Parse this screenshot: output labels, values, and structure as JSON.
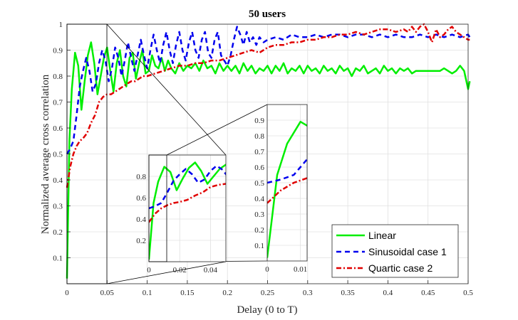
{
  "chart_data": {
    "type": "line",
    "title": "50 users",
    "xlabel": "Delay (0 to T)",
    "ylabel": "Normalized average cross correlation",
    "xlim": [
      0,
      0.5
    ],
    "ylim": [
      0,
      1
    ],
    "xticks": [
      "0",
      "0.05",
      "0.1",
      "0.15",
      "0.2",
      "0.25",
      "0.3",
      "0.35",
      "0.4",
      "0.45",
      "0.5"
    ],
    "yticks": [
      "0.1",
      "0.2",
      "0.3",
      "0.4",
      "0.5",
      "0.6",
      "0.7",
      "0.8",
      "0.9",
      "1"
    ],
    "grid": true,
    "legend_position": "bottom-right",
    "series": [
      {
        "name": "Linear",
        "color": "#00ee00",
        "style": "solid",
        "x": [
          0,
          0.003,
          0.006,
          0.01,
          0.014,
          0.018,
          0.022,
          0.026,
          0.03,
          0.034,
          0.038,
          0.042,
          0.046,
          0.05,
          0.054,
          0.058,
          0.062,
          0.066,
          0.07,
          0.074,
          0.078,
          0.082,
          0.086,
          0.09,
          0.094,
          0.098,
          0.102,
          0.106,
          0.11,
          0.114,
          0.118,
          0.122,
          0.126,
          0.13,
          0.135,
          0.14,
          0.145,
          0.15,
          0.155,
          0.16,
          0.165,
          0.17,
          0.175,
          0.18,
          0.185,
          0.19,
          0.195,
          0.2,
          0.205,
          0.21,
          0.215,
          0.22,
          0.225,
          0.23,
          0.235,
          0.24,
          0.245,
          0.25,
          0.255,
          0.26,
          0.265,
          0.27,
          0.275,
          0.28,
          0.285,
          0.29,
          0.295,
          0.3,
          0.305,
          0.31,
          0.315,
          0.32,
          0.325,
          0.33,
          0.335,
          0.34,
          0.345,
          0.35,
          0.355,
          0.36,
          0.365,
          0.37,
          0.375,
          0.38,
          0.385,
          0.39,
          0.395,
          0.4,
          0.405,
          0.41,
          0.415,
          0.42,
          0.425,
          0.43,
          0.435,
          0.44,
          0.445,
          0.45,
          0.455,
          0.46,
          0.465,
          0.47,
          0.475,
          0.48,
          0.485,
          0.49,
          0.495,
          0.5,
          0.502
        ],
        "values": [
          0.02,
          0.55,
          0.75,
          0.89,
          0.84,
          0.67,
          0.78,
          0.88,
          0.93,
          0.85,
          0.73,
          0.8,
          0.87,
          0.91,
          0.82,
          0.74,
          0.85,
          0.9,
          0.8,
          0.76,
          0.87,
          0.89,
          0.79,
          0.85,
          0.9,
          0.81,
          0.82,
          0.88,
          0.84,
          0.83,
          0.87,
          0.82,
          0.86,
          0.83,
          0.81,
          0.85,
          0.82,
          0.84,
          0.83,
          0.85,
          0.82,
          0.86,
          0.83,
          0.84,
          0.81,
          0.85,
          0.82,
          0.84,
          0.82,
          0.84,
          0.81,
          0.85,
          0.82,
          0.84,
          0.81,
          0.83,
          0.82,
          0.84,
          0.81,
          0.84,
          0.82,
          0.85,
          0.81,
          0.83,
          0.82,
          0.84,
          0.81,
          0.84,
          0.82,
          0.83,
          0.81,
          0.84,
          0.82,
          0.83,
          0.81,
          0.84,
          0.82,
          0.83,
          0.8,
          0.83,
          0.82,
          0.84,
          0.81,
          0.82,
          0.83,
          0.81,
          0.84,
          0.82,
          0.83,
          0.81,
          0.83,
          0.82,
          0.83,
          0.81,
          0.82,
          0.82,
          0.82,
          0.82,
          0.82,
          0.82,
          0.82,
          0.83,
          0.82,
          0.81,
          0.82,
          0.84,
          0.82,
          0.75,
          0.78
        ]
      },
      {
        "name": "Sinusoidal case 1",
        "color": "#0000ee",
        "style": "dashed",
        "x": [
          0,
          0.004,
          0.008,
          0.012,
          0.016,
          0.02,
          0.024,
          0.028,
          0.032,
          0.036,
          0.04,
          0.044,
          0.048,
          0.052,
          0.056,
          0.06,
          0.064,
          0.068,
          0.072,
          0.076,
          0.08,
          0.084,
          0.088,
          0.092,
          0.096,
          0.1,
          0.104,
          0.108,
          0.112,
          0.116,
          0.12,
          0.124,
          0.128,
          0.132,
          0.136,
          0.14,
          0.144,
          0.148,
          0.152,
          0.156,
          0.16,
          0.164,
          0.168,
          0.172,
          0.176,
          0.18,
          0.184,
          0.188,
          0.192,
          0.196,
          0.2,
          0.204,
          0.208,
          0.212,
          0.216,
          0.22,
          0.224,
          0.228,
          0.232,
          0.236,
          0.24,
          0.245,
          0.25,
          0.26,
          0.27,
          0.28,
          0.29,
          0.3,
          0.31,
          0.32,
          0.33,
          0.34,
          0.35,
          0.36,
          0.37,
          0.38,
          0.39,
          0.4,
          0.41,
          0.42,
          0.43,
          0.44,
          0.45,
          0.46,
          0.47,
          0.48,
          0.49,
          0.5,
          0.502
        ],
        "values": [
          0.5,
          0.52,
          0.55,
          0.65,
          0.76,
          0.82,
          0.87,
          0.82,
          0.74,
          0.77,
          0.85,
          0.9,
          0.86,
          0.78,
          0.83,
          0.91,
          0.87,
          0.8,
          0.86,
          0.93,
          0.87,
          0.82,
          0.88,
          0.94,
          0.88,
          0.83,
          0.9,
          0.96,
          0.9,
          0.85,
          0.92,
          0.97,
          0.9,
          0.85,
          0.92,
          0.97,
          0.9,
          0.86,
          0.93,
          0.97,
          0.9,
          0.87,
          0.94,
          0.97,
          0.89,
          0.87,
          0.94,
          0.97,
          0.88,
          0.86,
          0.84,
          0.88,
          0.94,
          0.99,
          0.96,
          0.92,
          0.97,
          0.93,
          0.95,
          0.92,
          0.95,
          0.93,
          0.94,
          0.95,
          0.94,
          0.96,
          0.95,
          0.95,
          0.96,
          0.95,
          0.96,
          0.96,
          0.95,
          0.96,
          0.96,
          0.95,
          0.96,
          0.95,
          0.96,
          0.95,
          0.95,
          0.96,
          0.95,
          0.96,
          0.95,
          0.96,
          0.95,
          0.96,
          0.95
        ]
      },
      {
        "name": "Quartic case 2",
        "color": "#e00000",
        "style": "dashdot",
        "x": [
          0,
          0.004,
          0.008,
          0.012,
          0.016,
          0.02,
          0.025,
          0.03,
          0.035,
          0.04,
          0.045,
          0.05,
          0.055,
          0.06,
          0.065,
          0.07,
          0.075,
          0.08,
          0.085,
          0.09,
          0.095,
          0.1,
          0.11,
          0.12,
          0.13,
          0.14,
          0.15,
          0.16,
          0.17,
          0.18,
          0.19,
          0.2,
          0.21,
          0.22,
          0.23,
          0.24,
          0.25,
          0.26,
          0.27,
          0.28,
          0.29,
          0.3,
          0.31,
          0.32,
          0.33,
          0.34,
          0.35,
          0.36,
          0.37,
          0.38,
          0.39,
          0.4,
          0.41,
          0.42,
          0.425,
          0.43,
          0.435,
          0.44,
          0.445,
          0.45,
          0.455,
          0.46,
          0.465,
          0.47,
          0.475,
          0.48,
          0.485,
          0.49,
          0.495,
          0.5,
          0.502
        ],
        "values": [
          0.37,
          0.45,
          0.5,
          0.53,
          0.55,
          0.56,
          0.58,
          0.62,
          0.65,
          0.7,
          0.72,
          0.73,
          0.73,
          0.74,
          0.75,
          0.76,
          0.77,
          0.78,
          0.78,
          0.79,
          0.8,
          0.8,
          0.81,
          0.82,
          0.83,
          0.84,
          0.84,
          0.85,
          0.85,
          0.86,
          0.86,
          0.87,
          0.88,
          0.89,
          0.9,
          0.89,
          0.91,
          0.92,
          0.92,
          0.93,
          0.93,
          0.94,
          0.94,
          0.95,
          0.95,
          0.96,
          0.96,
          0.97,
          0.96,
          0.97,
          0.98,
          0.98,
          0.97,
          0.98,
          0.97,
          0.99,
          0.97,
          0.99,
          1.0,
          0.97,
          0.93,
          0.98,
          0.95,
          0.96,
          0.98,
          0.99,
          0.97,
          0.96,
          0.95,
          0.94,
          0.94
        ]
      }
    ],
    "insets": [
      {
        "xlim": [
          0,
          0.05
        ],
        "ylim": [
          0,
          1
        ],
        "xticks": [
          "0",
          "0.02",
          "0.04"
        ],
        "yticks": [
          "0.2",
          "0.4",
          "0.6",
          "0.8"
        ]
      },
      {
        "xlim": [
          0,
          0.012
        ],
        "ylim": [
          0,
          1
        ],
        "xticks": [
          "0",
          "0.01"
        ],
        "yticks": [
          "0.1",
          "0.2",
          "0.3",
          "0.4",
          "0.5",
          "0.6",
          "0.7",
          "0.8",
          "0.9"
        ]
      }
    ]
  }
}
